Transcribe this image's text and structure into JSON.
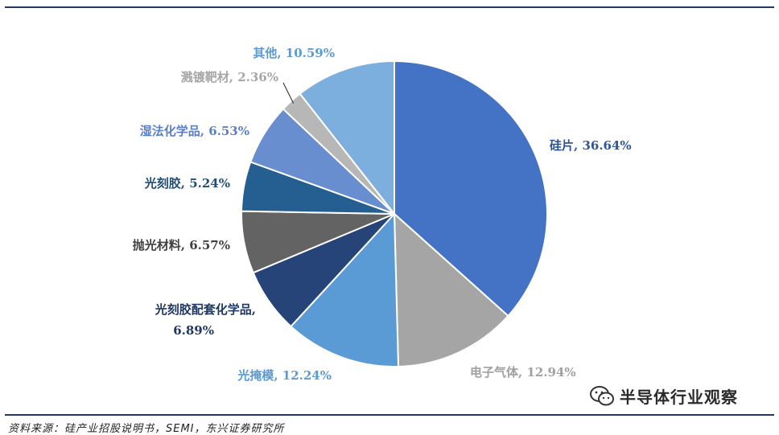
{
  "chart_data": {
    "type": "pie",
    "slices": [
      {
        "label": "硅片",
        "value": 36.64,
        "display": "硅片, 36.64%",
        "color": "#4472c4",
        "label_color": "#2f5597"
      },
      {
        "label": "电子气体",
        "value": 12.94,
        "display": "电子气体, 12.94%",
        "color": "#a5a5a5",
        "label_color": "#a0a0a0"
      },
      {
        "label": "光掩模",
        "value": 12.24,
        "display": "光掩模, 12.24%",
        "color": "#5b9bd5",
        "label_color": "#5b9bd5"
      },
      {
        "label": "光刻胶配套化学品",
        "value": 6.89,
        "display": "光刻胶配套化学品,",
        "display2": "6.89%",
        "color": "#264478",
        "label_color": "#1f3864"
      },
      {
        "label": "抛光材料",
        "value": 6.57,
        "display": "抛光材料, 6.57%",
        "color": "#636363",
        "label_color": "#404040"
      },
      {
        "label": "光刻胶",
        "value": 5.24,
        "display": "光刻胶, 5.24%",
        "color": "#255e91",
        "label_color": "#1f4e79"
      },
      {
        "label": "湿法化学品",
        "value": 6.53,
        "display": "湿法化学品, 6.53%",
        "color": "#698ed0",
        "label_color": "#5b7fc7"
      },
      {
        "label": "溅镀靶材",
        "value": 2.36,
        "display": "溅镀靶材, 2.36%",
        "color": "#b7b7b7",
        "label_color": "#a6a6a6"
      },
      {
        "label": "其他",
        "value": 10.59,
        "display": "其他, 10.59%",
        "color": "#7cafdd",
        "label_color": "#5b9bd5"
      }
    ]
  },
  "footer": {
    "source": "资料来源：硅产业招股说明书，SEMI，东兴证券研究所"
  },
  "watermark": {
    "text": "半导体行业观察"
  }
}
